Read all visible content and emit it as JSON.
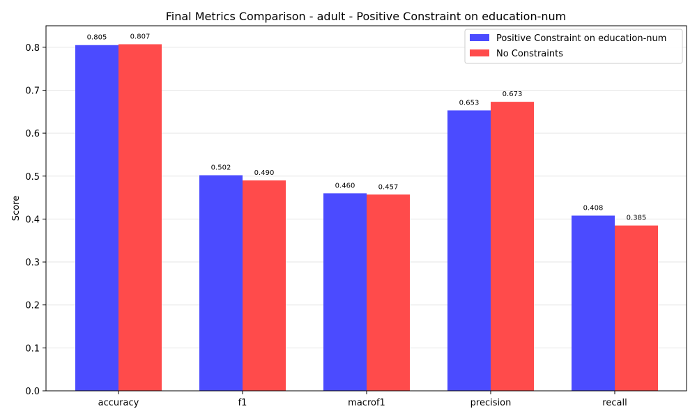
{
  "chart_data": {
    "type": "bar",
    "title": "Final Metrics Comparison - adult - Positive Constraint on education-num",
    "xlabel": "",
    "ylabel": "Score",
    "categories": [
      "accuracy",
      "f1",
      "macrof1",
      "precision",
      "recall"
    ],
    "series": [
      {
        "name": "Positive Constraint on education-num",
        "color": "#4b4bff",
        "values": [
          0.805,
          0.502,
          0.46,
          0.653,
          0.408
        ],
        "labels": [
          "0.805",
          "0.502",
          "0.460",
          "0.653",
          "0.408"
        ]
      },
      {
        "name": "No Constraints",
        "color": "#ff4b4b",
        "values": [
          0.807,
          0.49,
          0.457,
          0.673,
          0.385
        ],
        "labels": [
          "0.807",
          "0.490",
          "0.457",
          "0.673",
          "0.385"
        ]
      }
    ],
    "ylim": [
      0,
      0.85
    ],
    "yticks": [
      "0.0",
      "0.1",
      "0.2",
      "0.3",
      "0.4",
      "0.5",
      "0.6",
      "0.7",
      "0.8"
    ],
    "grid": "y",
    "legend_position": "top-right"
  }
}
